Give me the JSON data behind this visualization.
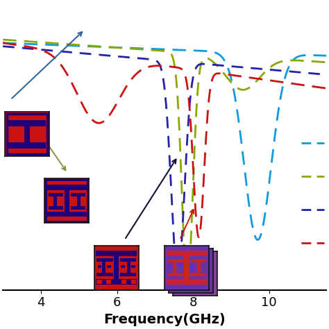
{
  "xlabel": "Frequency(GHz)",
  "xlim": [
    3.0,
    11.5
  ],
  "ylim": [
    -38,
    5
  ],
  "x_ticks": [
    4,
    6,
    8,
    10
  ],
  "bg_color": "#ffffff",
  "curve_cyan_color": "#1199dd",
  "curve_green_color": "#88aa00",
  "curve_darkblue_color": "#2222aa",
  "curve_red_color": "#cc1111",
  "lw": 2.0,
  "fss_red": "#cc1111",
  "fss_purple_bg": "#6633aa",
  "fss_darkblue": "#220077",
  "fss_red_on_purple": "#cc2222",
  "legend_colors": [
    "#1199dd",
    "#88aa00",
    "#2222aa",
    "#cc1111"
  ]
}
